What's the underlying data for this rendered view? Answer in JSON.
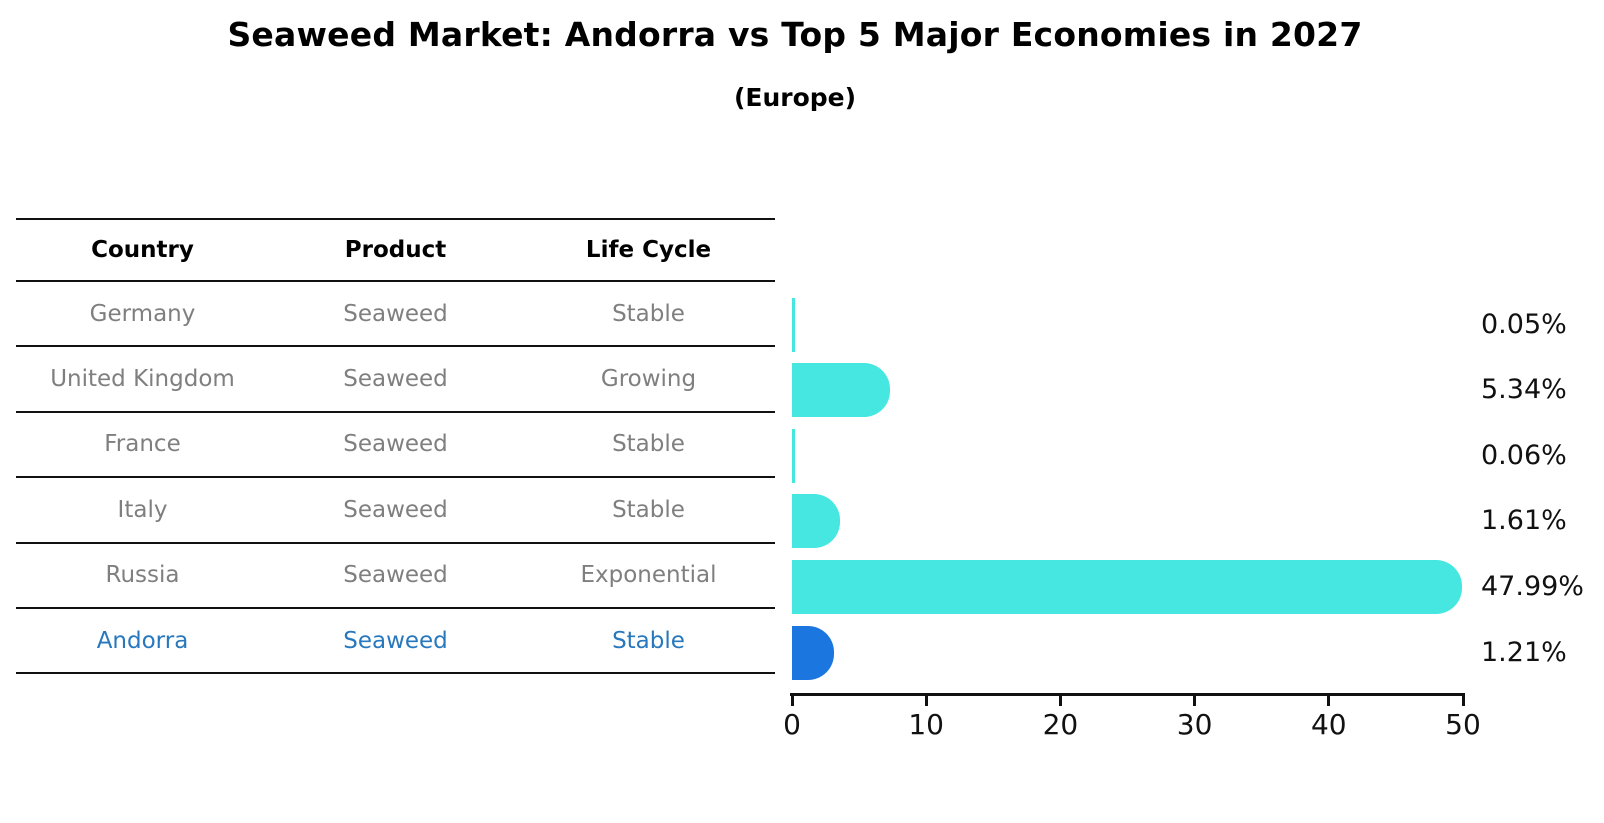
{
  "title": "Seaweed Market: Andorra vs Top 5 Major Economies in 2027",
  "subtitle": "(Europe)",
  "table": {
    "columns": [
      "Country",
      "Product",
      "Life Cycle"
    ],
    "rows": [
      {
        "country": "Germany",
        "product": "Seaweed",
        "life_cycle": "Stable",
        "highlight": false
      },
      {
        "country": "United Kingdom",
        "product": "Seaweed",
        "life_cycle": "Growing",
        "highlight": false
      },
      {
        "country": "France",
        "product": "Seaweed",
        "life_cycle": "Stable",
        "highlight": false
      },
      {
        "country": "Italy",
        "product": "Seaweed",
        "life_cycle": "Stable",
        "highlight": false
      },
      {
        "country": "Russia",
        "product": "Seaweed",
        "life_cycle": "Exponential",
        "highlight": false
      },
      {
        "country": "Andorra",
        "product": "Seaweed",
        "life_cycle": "Stable",
        "highlight": true
      }
    ]
  },
  "chart_data": {
    "type": "bar",
    "orientation": "horizontal",
    "title": "Seaweed Market: Andorra vs Top 5 Major Economies in 2027",
    "subtitle": "(Europe)",
    "categories": [
      "Germany",
      "United Kingdom",
      "France",
      "Italy",
      "Russia",
      "Andorra"
    ],
    "values": [
      0.05,
      5.34,
      0.06,
      1.61,
      47.99,
      1.21
    ],
    "value_labels": [
      "0.05%",
      "5.34%",
      "0.06%",
      "1.61%",
      "47.99%",
      "1.21%"
    ],
    "xlim": [
      0,
      50
    ],
    "xticks": [
      0,
      10,
      20,
      30,
      40,
      50
    ],
    "xtick_labels": [
      "0",
      "10",
      "20",
      "30",
      "40",
      "50"
    ],
    "grid": false,
    "legend": false,
    "bar_color": "#46E6E1",
    "highlight_index": 5,
    "highlight_bar_color": "#1C76DF",
    "highlight_text_color": "#2878be",
    "table_text_color": "#7f7f7f"
  }
}
